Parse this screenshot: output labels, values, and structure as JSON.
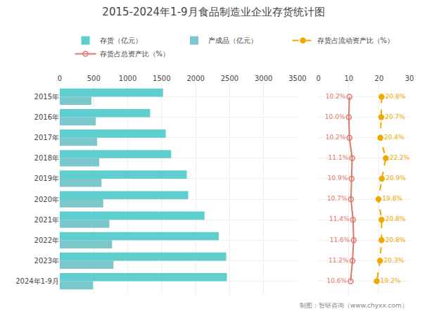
{
  "chart_data": [
    {
      "type": "bar",
      "orientation": "horizontal",
      "title": "2015-2024年1-9月食品制造业企业存货统计图",
      "annotations": [
        "制图：智研咨询（www.chyxx.com）"
      ],
      "categories": [
        "2015年",
        "2016年",
        "2017年",
        "2018年",
        "2019年",
        "2020年",
        "2021年",
        "2022年",
        "2023年",
        "2024年1-9月"
      ],
      "series": [
        {
          "name": "存货（亿元）",
          "color": "#5ECECE",
          "values": [
            1520,
            1330,
            1560,
            1640,
            1870,
            1890,
            2130,
            2340,
            2450,
            2460
          ]
        },
        {
          "name": "产成品（亿元）",
          "color": "#7BC8CC",
          "values": [
            465,
            530,
            550,
            580,
            615,
            640,
            730,
            770,
            790,
            490
          ]
        }
      ],
      "xlim": [
        0,
        3500
      ],
      "xticks": [
        0,
        500,
        1000,
        1500,
        2000,
        2500,
        3000,
        3500
      ],
      "grid": true
    },
    {
      "type": "line",
      "orientation": "horizontal",
      "categories": [
        "2015年",
        "2016年",
        "2017年",
        "2018年",
        "2019年",
        "2020年",
        "2021年",
        "2022年",
        "2023年",
        "2024年1-9月"
      ],
      "series": [
        {
          "name": "存货占流动资产比（%）",
          "color": "#F0A800",
          "line_style": "dashed",
          "marker": "circle",
          "values": [
            20.8,
            20.7,
            20.4,
            22.2,
            20.9,
            19.8,
            20.8,
            20.8,
            20.3,
            19.2
          ],
          "value_labels": [
            "20.8%",
            "20.7%",
            "20.4%",
            "22.2%",
            "20.9%",
            "19.8%",
            "20.8%",
            "20.8%",
            "20.3%",
            "19.2%"
          ]
        },
        {
          "name": "存货占总资产比（%）",
          "color": "#E07868",
          "line_style": "solid",
          "marker": "circle-open",
          "values": [
            10.2,
            10.0,
            10.2,
            11.1,
            10.9,
            10.7,
            11.4,
            11.6,
            11.2,
            10.6
          ],
          "value_labels": [
            "10.2%",
            "10.0%",
            "10.2%",
            "11.1%",
            "10.9%",
            "10.7%",
            "11.4%",
            "11.6%",
            "11.2%",
            "10.6%"
          ]
        }
      ],
      "xlim": [
        0,
        30
      ],
      "xticks": [
        0,
        10,
        20,
        30
      ],
      "grid": true,
      "data_labels": true
    }
  ]
}
